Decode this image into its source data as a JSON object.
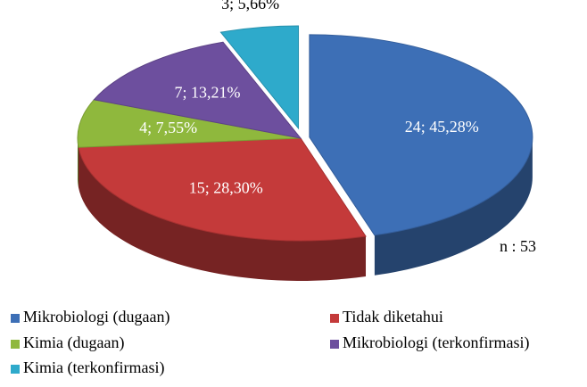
{
  "chart_data": {
    "type": "pie",
    "categories": [
      "Mikrobiologi (dugaan)",
      "Tidak diketahui",
      "Kimia (dugaan)",
      "Mikrobiologi (terkonfirmasi)",
      "Kimia (terkonfirmasi)"
    ],
    "values": [
      24,
      15,
      4,
      7,
      3
    ],
    "value_labels": [
      "24; 45,28%",
      "15; 28,30%",
      "4; 7,55%",
      "7; 13,21%",
      "3; 5,66%"
    ],
    "colors": [
      "#3d6fb6",
      "#c43a3a",
      "#8fb83d",
      "#6d4f9e",
      "#2eaacb"
    ],
    "annotation": "n : 53",
    "legend": "bottom"
  }
}
